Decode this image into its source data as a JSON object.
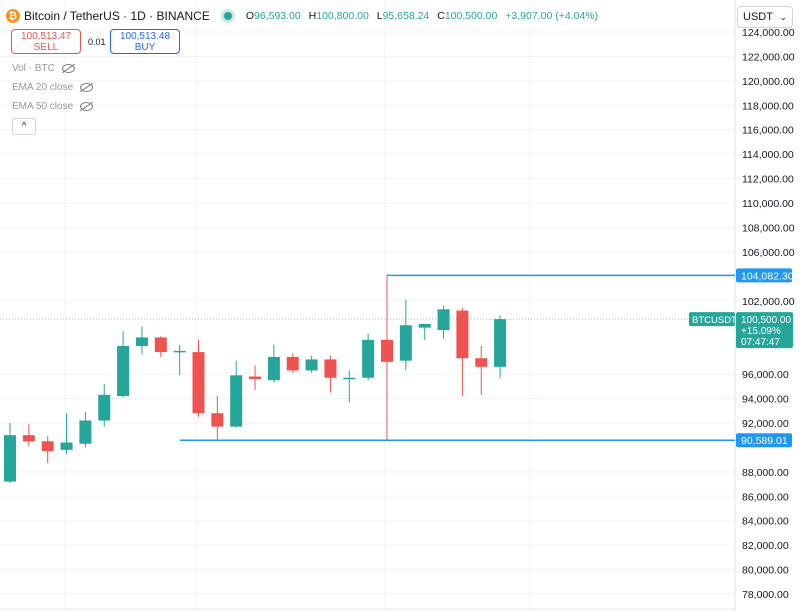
{
  "header": {
    "symbol": "Bitcoin / TetherUS · 1D · BINANCE",
    "logo_glyph": "₿",
    "open_label": "O",
    "open": "96,593.00",
    "high_label": "H",
    "high": "100,800.00",
    "low_label": "L",
    "low": "95,658.24",
    "close_label": "C",
    "close": "100,500.00",
    "change": "+3,907.00 (+4.04%)"
  },
  "trade": {
    "sell_price": "100,513.47",
    "sell_label": "SELL",
    "spread": "0.01",
    "buy_price": "100,513.48",
    "buy_label": "BUY"
  },
  "legend": {
    "vol": "Vol · BTC",
    "ema20": "EMA 20 close",
    "ema50": "EMA 50 close",
    "collapse_glyph": "^"
  },
  "currency": {
    "value": "USDT",
    "chevron": "⌄"
  },
  "colors": {
    "up": "#26a69a",
    "down": "#ef5350",
    "hline": "#2196f3",
    "grid": "#f0f3fa",
    "currentLine": "#b2b5be"
  },
  "chart_data": {
    "type": "candlestick",
    "symbol": "BTCUSDT",
    "ylim": [
      77000,
      125000
    ],
    "y_ticks": [
      "124,000.00",
      "122,000.00",
      "120,000.00",
      "118,000.00",
      "116,000.00",
      "114,000.00",
      "112,000.00",
      "110,000.00",
      "108,000.00",
      "106,000.00",
      "102,000.00",
      "96,000.00",
      "94,000.00",
      "92,000.00",
      "88,000.00",
      "86,000.00",
      "84,000.00",
      "82,000.00",
      "80,000.00",
      "78,000.00"
    ],
    "y_tick_values": [
      124000,
      122000,
      120000,
      118000,
      116000,
      114000,
      112000,
      110000,
      108000,
      106000,
      102000,
      96000,
      94000,
      92000,
      88000,
      86000,
      84000,
      82000,
      80000,
      78000
    ],
    "candles": [
      {
        "o": 87200,
        "h": 92000,
        "l": 87100,
        "c": 91000
      },
      {
        "o": 91000,
        "h": 91900,
        "l": 90100,
        "c": 90500
      },
      {
        "o": 90500,
        "h": 90900,
        "l": 88700,
        "c": 89700
      },
      {
        "o": 89800,
        "h": 92800,
        "l": 89400,
        "c": 90400
      },
      {
        "o": 90300,
        "h": 92900,
        "l": 90000,
        "c": 92200
      },
      {
        "o": 92200,
        "h": 95200,
        "l": 91700,
        "c": 94300
      },
      {
        "o": 94200,
        "h": 99500,
        "l": 94100,
        "c": 98300
      },
      {
        "o": 98300,
        "h": 99900,
        "l": 97600,
        "c": 99000
      },
      {
        "o": 99000,
        "h": 99100,
        "l": 97400,
        "c": 97800
      },
      {
        "o": 97800,
        "h": 98400,
        "l": 95900,
        "c": 97900
      },
      {
        "o": 97800,
        "h": 98800,
        "l": 92500,
        "c": 92800
      },
      {
        "o": 92800,
        "h": 94200,
        "l": 90600,
        "c": 91700
      },
      {
        "o": 91700,
        "h": 97100,
        "l": 91600,
        "c": 95900
      },
      {
        "o": 95800,
        "h": 96700,
        "l": 94700,
        "c": 95600
      },
      {
        "o": 95500,
        "h": 98400,
        "l": 95300,
        "c": 97400
      },
      {
        "o": 97400,
        "h": 97700,
        "l": 96100,
        "c": 96300
      },
      {
        "o": 96300,
        "h": 97500,
        "l": 96100,
        "c": 97200
      },
      {
        "o": 97200,
        "h": 97500,
        "l": 94500,
        "c": 95700
      },
      {
        "o": 95700,
        "h": 96300,
        "l": 93700,
        "c": 95700
      },
      {
        "o": 95700,
        "h": 99300,
        "l": 95500,
        "c": 98800
      },
      {
        "o": 98800,
        "h": 104082,
        "l": 90589,
        "c": 97000
      },
      {
        "o": 97100,
        "h": 102100,
        "l": 96300,
        "c": 100000
      },
      {
        "o": 99800,
        "h": 100100,
        "l": 98800,
        "c": 100100
      },
      {
        "o": 99600,
        "h": 101600,
        "l": 98900,
        "c": 101300
      },
      {
        "o": 101200,
        "h": 101400,
        "l": 94200,
        "c": 97300
      },
      {
        "o": 97300,
        "h": 98300,
        "l": 94300,
        "c": 96600
      },
      {
        "o": 96593,
        "h": 100800,
        "l": 95658,
        "c": 100500
      }
    ],
    "hlines": [
      {
        "value": 104082.3,
        "label": "104,082.30",
        "x_start_index": 20
      },
      {
        "value": 90589.01,
        "label": "90,589.01",
        "x_start_index": 9
      }
    ],
    "current": {
      "value": 100500,
      "symbol": "BTCUSDT",
      "price": "100,500.00",
      "change": "+15.09%",
      "countdown": "07:47:47"
    }
  }
}
